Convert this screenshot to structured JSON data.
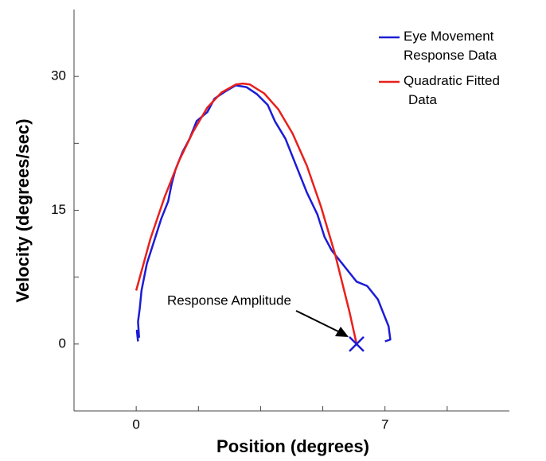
{
  "chart_data": {
    "type": "line",
    "xlabel": "Position (degrees)",
    "ylabel": "Velocity (degrees/sec)",
    "xlim": [
      -1.75,
      10.5
    ],
    "ylim": [
      -7.5,
      37.5
    ],
    "xticks": [
      0,
      7
    ],
    "yticks": [
      0,
      15,
      30
    ],
    "xminorticks": [
      1.75,
      3.5,
      5.25,
      8.75
    ],
    "yminorticks": [
      7.5,
      22.5
    ],
    "legend": "top-right",
    "series": [
      {
        "name": "Eye Movement Response Data",
        "color": "#1c1cd6",
        "x": [
          0.05,
          0.02,
          0.08,
          0.05,
          0.1,
          0.15,
          0.3,
          0.5,
          0.7,
          0.9,
          1.0,
          1.1,
          1.3,
          1.5,
          1.7,
          2.0,
          2.2,
          2.5,
          2.8,
          3.1,
          3.4,
          3.7,
          3.9,
          4.2,
          4.5,
          4.8,
          5.1,
          5.3,
          5.5,
          5.8,
          6.0,
          6.2,
          6.5,
          6.8,
          7.0,
          7.1,
          7.15,
          7.0
        ],
        "values": [
          0.3,
          1.5,
          0.8,
          2.5,
          4,
          6,
          9,
          11.5,
          14,
          16,
          18,
          19.5,
          21.5,
          23,
          25,
          26,
          27.5,
          28.3,
          29,
          28.8,
          28,
          26.8,
          25,
          23,
          20,
          17,
          14.5,
          12,
          10.5,
          9,
          8,
          7,
          6.5,
          5,
          3,
          2,
          0.5,
          0.3
        ]
      },
      {
        "name": "Quadratic Fitted Data",
        "color": "#e8201c",
        "x": [
          0,
          0.4,
          0.8,
          1.2,
          1.6,
          2.0,
          2.4,
          2.8,
          3.0,
          3.2,
          3.6,
          4.0,
          4.4,
          4.8,
          5.2,
          5.6,
          6.0,
          6.2
        ],
        "values": [
          6,
          11.8,
          16.5,
          20.5,
          23.8,
          26.5,
          28.2,
          29.1,
          29.2,
          29.1,
          28.1,
          26.3,
          23.6,
          20.0,
          15.4,
          10.0,
          3.6,
          0
        ]
      }
    ],
    "marker": {
      "x": 6.2,
      "y": 0,
      "color": "#1c1cd6"
    },
    "annotation": "Response Amplitude"
  }
}
